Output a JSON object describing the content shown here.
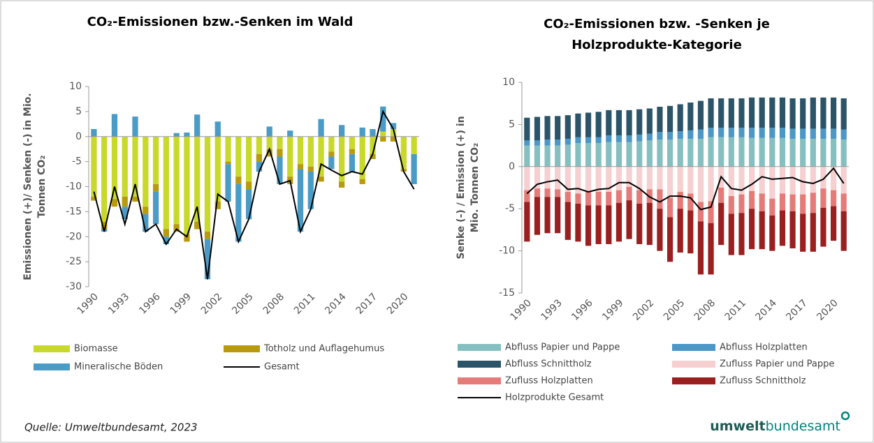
{
  "chart_data": [
    {
      "type": "bar",
      "stacked": true,
      "title": [
        "CO₂-Emissionen bzw.-Senken im Wald"
      ],
      "y_label": [
        "Emissionen (+)/ Senken (-) in Mio.",
        "Tonnen CO₂"
      ],
      "categories": [
        "1990",
        null,
        null,
        "1993",
        null,
        null,
        "1996",
        null,
        null,
        "1999",
        null,
        null,
        "2002",
        null,
        null,
        "2005",
        null,
        null,
        "2008",
        null,
        null,
        "2011",
        null,
        null,
        "2014",
        null,
        null,
        "2017",
        null,
        null,
        "2020",
        null
      ],
      "ylim": [
        -30,
        10
      ],
      "yticks": [
        10,
        5,
        0,
        -5,
        -10,
        -15,
        -20,
        -25,
        -30
      ],
      "series": [
        {
          "name": "Biomasse",
          "color": "#c8d92b",
          "values": [
            -12,
            -17,
            -12.5,
            -12,
            -12,
            -14,
            -9.5,
            -18.5,
            -17.5,
            -19.5,
            -17,
            -19,
            -13,
            -5,
            -8,
            -9,
            -3.5,
            -2.5,
            -2.5,
            -8,
            -5.5,
            -6,
            -8,
            -3,
            -9,
            -2.5,
            -8.5,
            -3.5,
            1,
            1.5,
            -6.5,
            -3.5
          ]
        },
        {
          "name": "Totholz und Auflagehumus",
          "color": "#b89a0e",
          "values": [
            -0.8,
            -1.5,
            -1.5,
            -2,
            -1,
            -1.5,
            -1.5,
            -1.5,
            -1.5,
            -1.5,
            -1.5,
            -1.5,
            -1.5,
            -0.5,
            -1.5,
            -1.5,
            -1.5,
            -1.5,
            -1.5,
            -1.5,
            -1,
            -1,
            -1,
            -1,
            -1.2,
            -1,
            -1,
            -1,
            -1,
            -1,
            -0.5,
            0
          ]
        },
        {
          "name": "Mineralische Böden",
          "color": "#4a9cc7",
          "values": [
            1.5,
            -0.5,
            4.5,
            -2.5,
            4,
            -3.5,
            -6.5,
            -1.5,
            0.7,
            0.8,
            4.4,
            -8,
            3,
            -7.5,
            -11.5,
            -6,
            -2,
            2,
            -5.5,
            1.2,
            -12.5,
            -7.5,
            3.5,
            -2.5,
            2.3,
            -3.5,
            1.8,
            1.5,
            5,
            1.2,
            0,
            -6
          ]
        },
        {
          "name": "Gesamt",
          "type": "line",
          "color": "#000000",
          "values": [
            -11,
            -19,
            -10,
            -17.5,
            -9.5,
            -19,
            -17.5,
            -21.5,
            -18.5,
            -20,
            -14,
            -28.5,
            -11.5,
            -13,
            -21,
            -16.5,
            -7,
            -2.5,
            -9.5,
            -8.8,
            -19,
            -14.5,
            -5.5,
            -6.7,
            -7.8,
            -7,
            -7.5,
            -3.5,
            5,
            1.5,
            -7,
            -10.5
          ]
        }
      ]
    },
    {
      "type": "bar",
      "stacked": true,
      "title": [
        "CO₂-Emissionen bzw. -Senken je",
        "Holzprodukte-Kategorie"
      ],
      "y_label": [
        "Senke (-) / Emission (+) in",
        "Mio. Tonnen CO₂"
      ],
      "categories": [
        "1990",
        null,
        null,
        "1993",
        null,
        null,
        "1996",
        null,
        null,
        "1999",
        null,
        null,
        "2002",
        null,
        null,
        "2005",
        null,
        null,
        "2008",
        null,
        null,
        "2011",
        null,
        null,
        "2014",
        null,
        null,
        "2017",
        null,
        null,
        "2020",
        null
      ],
      "ylim": [
        -15,
        10
      ],
      "yticks": [
        10,
        5,
        0,
        -5,
        -10,
        -15
      ],
      "series": [
        {
          "name": "Abfluss Papier und Pappe",
          "color": "#86bfbf",
          "values": [
            2.5,
            2.5,
            2.5,
            2.5,
            2.6,
            2.8,
            2.8,
            2.8,
            2.9,
            2.9,
            2.9,
            3.0,
            3.1,
            3.2,
            3.2,
            3.3,
            3.3,
            3.3,
            3.5,
            3.5,
            3.5,
            3.5,
            3.4,
            3.4,
            3.4,
            3.4,
            3.3,
            3.3,
            3.3,
            3.3,
            3.3,
            3.2
          ]
        },
        {
          "name": "Abfluss Holzplatten",
          "color": "#4b97c6",
          "values": [
            0.6,
            0.6,
            0.7,
            0.7,
            0.7,
            0.7,
            0.7,
            0.7,
            0.8,
            0.8,
            0.8,
            0.8,
            0.8,
            0.9,
            0.9,
            0.9,
            1.0,
            1.1,
            1.1,
            1.1,
            1.1,
            1.1,
            1.2,
            1.2,
            1.2,
            1.2,
            1.2,
            1.2,
            1.2,
            1.2,
            1.2,
            1.2
          ]
        },
        {
          "name": "Abfluss Schnittholz",
          "color": "#2b5468",
          "values": [
            2.7,
            2.8,
            2.8,
            2.8,
            2.8,
            2.8,
            2.9,
            3.0,
            3.0,
            3.0,
            3.0,
            3.0,
            3.0,
            3.0,
            3.1,
            3.2,
            3.3,
            3.4,
            3.5,
            3.5,
            3.5,
            3.5,
            3.6,
            3.6,
            3.6,
            3.6,
            3.6,
            3.6,
            3.7,
            3.7,
            3.7,
            3.7
          ]
        },
        {
          "name": "Zufluss Papier und Pappe",
          "color": "#f6cfd0",
          "values": [
            -2.8,
            -2.6,
            -2.6,
            -2.7,
            -3.0,
            -3.2,
            -3.0,
            -3.0,
            -3.0,
            -2.8,
            -2.4,
            -2.8,
            -2.7,
            -2.7,
            -3.7,
            -3.0,
            -3.2,
            -4.2,
            -4.1,
            -2.5,
            -3.5,
            -3.3,
            -2.9,
            -3.2,
            -3.8,
            -3.2,
            -3.3,
            -3.3,
            -3.1,
            -2.6,
            -2.8,
            -3.2
          ]
        },
        {
          "name": "Zufluss Holzplatten",
          "color": "#e57b78",
          "values": [
            -1.4,
            -1.0,
            -1.0,
            -0.9,
            -1.2,
            -1.2,
            -1.6,
            -1.6,
            -1.6,
            -1.5,
            -1.6,
            -1.6,
            -1.6,
            -2.3,
            -2.3,
            -2.0,
            -2.0,
            -2.3,
            -2.6,
            -1.8,
            -2.1,
            -2.2,
            -2.1,
            -2.1,
            -2.0,
            -2.0,
            -2.0,
            -2.3,
            -2.4,
            -2.3,
            -1.9,
            -2.1
          ]
        },
        {
          "name": "Zufluss Schnittholz",
          "color": "#9a1f1f",
          "values": [
            -4.7,
            -4.5,
            -4.3,
            -4.3,
            -4.5,
            -4.5,
            -4.8,
            -4.6,
            -4.6,
            -4.6,
            -4.6,
            -4.8,
            -5.0,
            -5.0,
            -5.3,
            -5.2,
            -5.1,
            -6.3,
            -6.1,
            -5.0,
            -4.9,
            -5.0,
            -4.8,
            -4.5,
            -4.2,
            -4.2,
            -4.4,
            -4.5,
            -4.6,
            -4.6,
            -4.1,
            -4.7
          ]
        },
        {
          "name": "Holzprodukte Gesamt",
          "type": "line",
          "color": "#000000",
          "values": [
            -3.2,
            -2.1,
            -1.8,
            -1.6,
            -2.7,
            -2.6,
            -3.0,
            -2.7,
            -2.6,
            -1.9,
            -1.9,
            -2.6,
            -3.6,
            -4.2,
            -3.5,
            -3.5,
            -3.7,
            -5.1,
            -4.8,
            -1.2,
            -2.6,
            -2.8,
            -2.1,
            -1.2,
            -1.5,
            -1.4,
            -1.3,
            -1.8,
            -2.0,
            -1.5,
            -0.2,
            -2.0
          ]
        }
      ]
    }
  ],
  "footer": {
    "source": "Quelle: Umweltbundesamt, 2023",
    "logo": [
      "umwelt",
      "bundesamt"
    ]
  }
}
